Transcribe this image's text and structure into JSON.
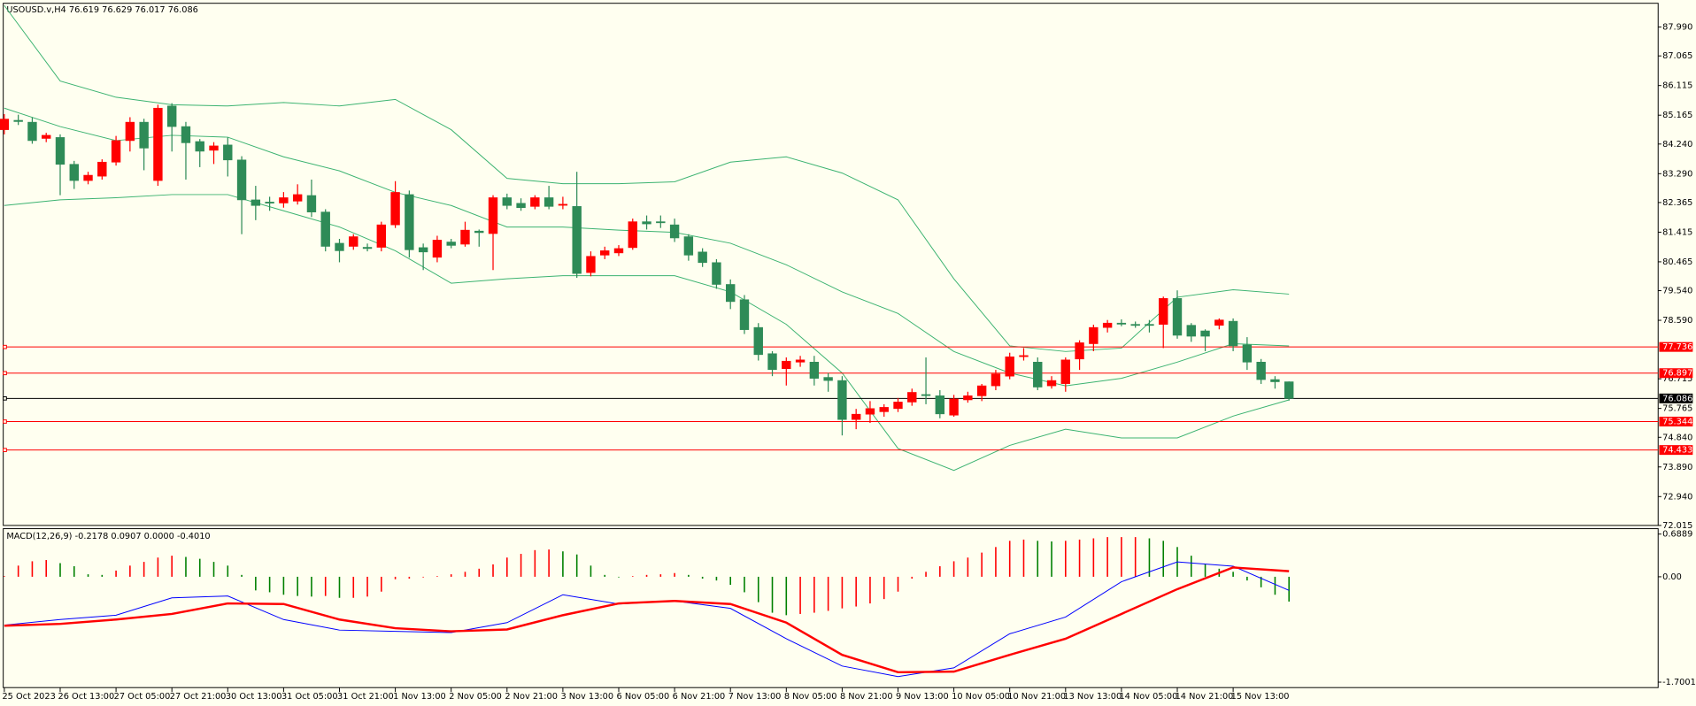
{
  "chart_data": [
    {
      "type": "candlestick",
      "title": "USOUSD.v,H4  76.619 76.629 76.017 76.086",
      "categories": [
        "25 Oct 2023",
        null,
        null,
        null,
        "26 Oct 13:00",
        null,
        null,
        null,
        "27 Oct 05:00",
        null,
        null,
        null,
        "27 Oct 21:00",
        null,
        null,
        null,
        "30 Oct 13:00",
        null,
        null,
        null,
        "31 Oct 05:00",
        null,
        null,
        null,
        "31 Oct 21:00",
        null,
        null,
        null,
        "1 Nov 13:00",
        null,
        null,
        null,
        "2 Nov 05:00",
        null,
        null,
        null,
        "2 Nov 21:00",
        null,
        null,
        null,
        "3 Nov 13:00",
        null,
        null,
        null,
        "6 Nov 05:00",
        null,
        null,
        null,
        "6 Nov 21:00",
        null,
        null,
        null,
        "7 Nov 13:00",
        null,
        null,
        null,
        "8 Nov 05:00",
        null,
        null,
        null,
        "8 Nov 21:00",
        null,
        null,
        null,
        "9 Nov 13:00",
        null,
        null,
        null,
        "10 Nov 05:00",
        null,
        null,
        null,
        "10 Nov 21:00",
        null,
        null,
        null,
        "13 Nov 13:00",
        null,
        null,
        null,
        "14 Nov 05:00",
        null,
        null,
        null,
        "14 Nov 21:00",
        null,
        null,
        null,
        "15 Nov 13:00",
        null,
        null,
        null,
        null
      ],
      "open": [
        84.7,
        85.0,
        84.94,
        84.42,
        84.45,
        83.59,
        83.07,
        83.21,
        83.66,
        84.35,
        84.94,
        83.07,
        85.46,
        84.8,
        84.32,
        84.04,
        84.21,
        83.73,
        82.45,
        82.38,
        82.35,
        82.41,
        82.59,
        82.06,
        81.06,
        80.96,
        80.93,
        80.93,
        81.65,
        82.62,
        80.92,
        80.61,
        81.1,
        81.03,
        81.45,
        81.37,
        82.52,
        82.34,
        82.24,
        82.52,
        82.31,
        82.24,
        80.12,
        80.68,
        80.75,
        80.92,
        81.75,
        81.75,
        81.65,
        81.27,
        80.78,
        80.44,
        79.74,
        79.25,
        78.36,
        77.52,
        77.04,
        77.25,
        77.25,
        76.76,
        76.66,
        75.41,
        75.58,
        75.66,
        75.76,
        75.97,
        76.21,
        76.17,
        75.55,
        76.04,
        76.17,
        76.49,
        76.8,
        77.46,
        77.25,
        76.49,
        76.56,
        77.35,
        77.84,
        78.36,
        78.5,
        78.46,
        78.46,
        78.46,
        79.29,
        78.43,
        78.25,
        78.43,
        78.56,
        77.8,
        77.25,
        76.69,
        76.619
      ],
      "high": [
        85.2,
        85.18,
        85.1,
        84.6,
        84.55,
        83.7,
        83.35,
        83.75,
        84.5,
        85.1,
        85.05,
        85.5,
        85.55,
        84.95,
        84.4,
        84.3,
        84.45,
        83.85,
        82.9,
        82.55,
        82.7,
        82.95,
        83.1,
        82.15,
        81.2,
        81.35,
        81.05,
        81.75,
        83.05,
        82.75,
        81.05,
        81.3,
        81.2,
        81.75,
        81.5,
        82.6,
        82.65,
        82.5,
        82.6,
        82.9,
        82.55,
        83.35,
        80.8,
        80.95,
        81.0,
        81.85,
        81.95,
        81.95,
        81.85,
        81.35,
        80.9,
        80.55,
        79.9,
        79.4,
        78.5,
        77.6,
        77.4,
        77.45,
        77.45,
        76.9,
        76.8,
        75.75,
        76.0,
        75.9,
        76.1,
        76.4,
        77.4,
        76.35,
        76.2,
        76.3,
        76.55,
        77.0,
        77.55,
        77.7,
        77.4,
        76.8,
        77.4,
        77.95,
        78.45,
        78.6,
        78.62,
        78.55,
        78.6,
        79.35,
        79.55,
        78.5,
        78.3,
        78.65,
        78.65,
        78.05,
        77.35,
        76.8,
        76.629
      ],
      "low": [
        84.55,
        84.85,
        84.25,
        84.3,
        82.6,
        82.8,
        82.95,
        83.1,
        83.55,
        84.0,
        83.4,
        82.9,
        84.0,
        83.1,
        83.5,
        83.6,
        83.2,
        81.35,
        81.8,
        82.1,
        82.2,
        82.3,
        81.9,
        80.8,
        80.45,
        80.85,
        80.8,
        80.8,
        81.55,
        80.6,
        80.2,
        80.45,
        80.9,
        80.95,
        80.95,
        80.2,
        82.15,
        82.1,
        82.15,
        82.15,
        82.15,
        79.95,
        80.0,
        80.55,
        80.65,
        80.85,
        81.5,
        81.55,
        81.1,
        80.5,
        80.3,
        79.6,
        78.95,
        78.15,
        77.3,
        76.8,
        76.5,
        77.1,
        76.5,
        76.3,
        74.9,
        75.1,
        75.3,
        75.5,
        75.65,
        75.85,
        75.9,
        75.45,
        75.5,
        75.95,
        76.0,
        76.35,
        76.7,
        77.3,
        76.35,
        76.4,
        76.3,
        77.0,
        77.6,
        78.2,
        78.4,
        78.35,
        78.2,
        77.7,
        78.0,
        77.9,
        77.6,
        78.3,
        77.6,
        77.0,
        76.55,
        76.4,
        76.017
      ],
      "close": [
        85.04,
        84.96,
        84.35,
        84.52,
        83.59,
        83.07,
        83.24,
        83.66,
        84.35,
        84.94,
        84.11,
        85.39,
        84.8,
        84.28,
        84.01,
        84.18,
        83.73,
        82.45,
        82.27,
        82.35,
        82.52,
        82.62,
        82.06,
        80.96,
        80.82,
        81.27,
        80.89,
        81.65,
        82.69,
        80.85,
        80.78,
        81.16,
        80.99,
        81.48,
        81.4,
        82.52,
        82.27,
        82.2,
        82.52,
        82.24,
        82.31,
        80.09,
        80.64,
        80.82,
        80.89,
        81.75,
        81.68,
        81.72,
        81.23,
        80.68,
        80.44,
        79.74,
        79.19,
        78.29,
        77.49,
        77.01,
        77.28,
        77.32,
        76.73,
        76.66,
        75.41,
        75.58,
        75.76,
        75.8,
        75.97,
        76.28,
        76.19,
        75.59,
        76.07,
        76.17,
        76.49,
        76.87,
        77.42,
        77.46,
        76.45,
        76.66,
        77.32,
        77.87,
        78.36,
        78.5,
        78.49,
        78.44,
        78.43,
        79.29,
        78.11,
        78.08,
        78.08,
        78.6,
        77.77,
        77.25,
        76.69,
        76.62,
        76.086
      ],
      "up_color": "#ff0000",
      "down_color": "#2e8b57",
      "bands": {
        "color": "#3cb371",
        "x": [
          0,
          4,
          8,
          12,
          16,
          20,
          24,
          28,
          32,
          36,
          40,
          44,
          48,
          52,
          56,
          60,
          64,
          68,
          72,
          76,
          80,
          84,
          88,
          92
        ],
        "upper": [
          88.68,
          86.26,
          85.74,
          85.5,
          85.46,
          85.57,
          85.46,
          85.67,
          84.7,
          83.14,
          82.97,
          82.97,
          83.03,
          83.66,
          83.83,
          83.31,
          82.45,
          79.92,
          77.77,
          77.59,
          77.7,
          79.33,
          79.57,
          79.43
        ],
        "middle": [
          85.39,
          84.8,
          84.35,
          84.52,
          84.46,
          83.83,
          83.38,
          82.69,
          82.27,
          81.58,
          81.58,
          81.48,
          81.41,
          81.06,
          80.37,
          79.5,
          78.81,
          77.59,
          76.9,
          76.49,
          76.73,
          77.25,
          77.84,
          77.77
        ],
        "lower": [
          82.27,
          82.45,
          82.52,
          82.62,
          82.62,
          82.1,
          81.58,
          80.82,
          79.78,
          79.92,
          80.02,
          80.02,
          80.02,
          79.5,
          78.46,
          76.9,
          74.48,
          73.78,
          74.58,
          75.1,
          74.82,
          74.82,
          75.52,
          76.04
        ]
      },
      "levels": [
        {
          "value": 77.736,
          "color": "#ff0000"
        },
        {
          "value": 76.897,
          "color": "#ff0000"
        },
        {
          "value": 76.086,
          "color": "#000000"
        },
        {
          "value": 75.344,
          "color": "#ff0000"
        },
        {
          "value": 74.433,
          "color": "#ff0000"
        }
      ],
      "ylim": [
        72.015,
        88.752
      ],
      "yticks": [
        {
          "value": 87.99,
          "label": "87.990"
        },
        87.065,
        86.115,
        85.165,
        {
          "value": 84.24,
          "label": "84.240"
        },
        {
          "value": 83.29,
          "label": "83.290"
        },
        82.365,
        81.415,
        80.465,
        {
          "value": 79.54,
          "label": "79.540"
        },
        {
          "value": 78.59,
          "label": "78.590"
        },
        76.715,
        75.765,
        {
          "value": 74.84,
          "label": "74.840"
        },
        {
          "value": 73.89,
          "label": "73.890"
        },
        {
          "value": 72.94,
          "label": "72.940"
        },
        72.015
      ]
    },
    {
      "type": "macd",
      "title": "MACD(12,26,9) -0.2178 0.0907 0.0000 -0.4010",
      "histogram": [
        0.01,
        0.18,
        0.25,
        0.27,
        0.22,
        0.17,
        0.04,
        0.03,
        0.1,
        0.18,
        0.24,
        0.31,
        0.34,
        0.32,
        0.29,
        0.24,
        0.18,
        0.03,
        -0.22,
        -0.25,
        -0.29,
        -0.31,
        -0.32,
        -0.31,
        -0.34,
        -0.34,
        -0.32,
        -0.24,
        -0.04,
        -0.03,
        -0.01,
        0.01,
        0.04,
        0.08,
        0.13,
        0.2,
        0.31,
        0.37,
        0.43,
        0.44,
        0.41,
        0.36,
        0.18,
        0.03,
        -0.01,
        0.01,
        0.03,
        0.04,
        0.06,
        0.03,
        -0.03,
        -0.06,
        -0.13,
        -0.25,
        -0.41,
        -0.58,
        -0.62,
        -0.6,
        -0.58,
        -0.55,
        -0.51,
        -0.48,
        -0.43,
        -0.36,
        -0.24,
        -0.03,
        0.08,
        0.17,
        0.25,
        0.31,
        0.39,
        0.48,
        0.58,
        0.6,
        0.58,
        0.57,
        0.58,
        0.6,
        0.62,
        0.64,
        0.64,
        0.64,
        0.62,
        0.58,
        0.48,
        0.34,
        0.2,
        0.13,
        0.08,
        -0.06,
        -0.17,
        -0.29,
        -0.4
      ],
      "up_color": "#ff0000",
      "down_color": "#008000",
      "x": [
        0,
        4,
        8,
        12,
        16,
        20,
        24,
        28,
        32,
        36,
        40,
        44,
        48,
        52,
        56,
        60,
        64,
        68,
        72,
        76,
        80,
        84,
        88,
        92
      ],
      "series": [
        {
          "color": "#0000ff",
          "values": [
            -0.78,
            -0.69,
            -0.62,
            -0.34,
            -0.31,
            -0.69,
            -0.86,
            -0.88,
            -0.9,
            -0.74,
            -0.29,
            -0.44,
            -0.39,
            -0.51,
            -1.0,
            -1.44,
            -1.61,
            -1.47,
            -0.92,
            -0.65,
            -0.08,
            0.24,
            0.17,
            -0.22
          ]
        },
        {
          "color": "#ff0000",
          "values": [
            -0.79,
            -0.76,
            -0.69,
            -0.6,
            -0.43,
            -0.44,
            -0.69,
            -0.83,
            -0.88,
            -0.85,
            -0.62,
            -0.43,
            -0.39,
            -0.44,
            -0.74,
            -1.26,
            -1.54,
            -1.53,
            -1.26,
            -1.0,
            -0.6,
            -0.2,
            0.15,
            0.09
          ]
        }
      ],
      "ylim": [
        -1.788,
        0.776
      ],
      "yticks": [
        0.6889,
        {
          "value": 0,
          "label": "0.00"
        },
        -1.7001
      ]
    }
  ]
}
